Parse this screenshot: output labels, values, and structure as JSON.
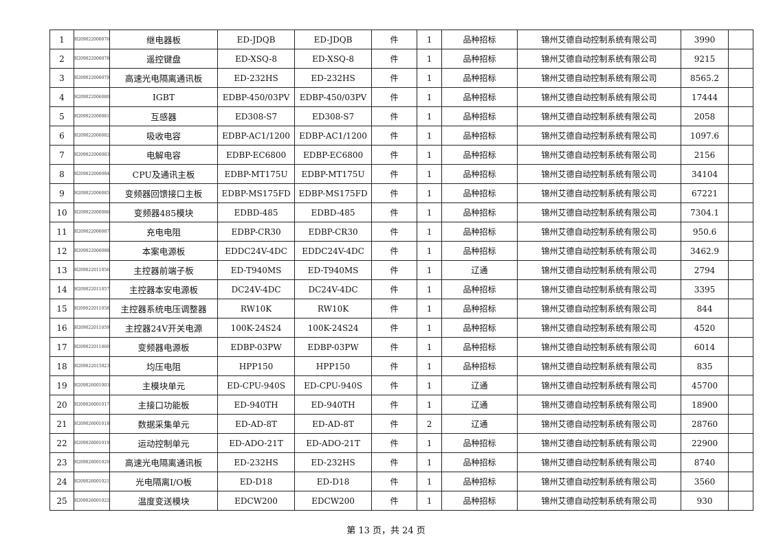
{
  "rows": [
    {
      "no": "1",
      "code": "H209022006076",
      "name": "继电器板",
      "spec": "ED-JDQB",
      "model": "ED-JDQB",
      "unit": "件",
      "qty": "1",
      "type": "品种招标",
      "company": "锦州艾德自动控制系统有限公司",
      "price": "3990",
      "note": ""
    },
    {
      "no": "2",
      "code": "H209022006078",
      "name": "遥控键盘",
      "spec": "ED-XSQ-8",
      "model": "ED-XSQ-8",
      "unit": "件",
      "qty": "1",
      "type": "品种招标",
      "company": "锦州艾德自动控制系统有限公司",
      "price": "9215",
      "note": ""
    },
    {
      "no": "3",
      "code": "H209022006079",
      "name": "高速光电隔离通讯板",
      "spec": "ED-232HS",
      "model": "ED-232HS",
      "unit": "件",
      "qty": "1",
      "type": "品种招标",
      "company": "锦州艾德自动控制系统有限公司",
      "price": "8565.2",
      "note": ""
    },
    {
      "no": "4",
      "code": "H209022006080",
      "name": "IGBT",
      "spec": "EDBP-450/03PV",
      "model": "EDBP-450/03PV",
      "unit": "件",
      "qty": "1",
      "type": "品种招标",
      "company": "锦州艾德自动控制系统有限公司",
      "price": "17444",
      "note": ""
    },
    {
      "no": "5",
      "code": "H209022006081",
      "name": "互感器",
      "spec": "ED308-S7",
      "model": "ED308-S7",
      "unit": "件",
      "qty": "1",
      "type": "品种招标",
      "company": "锦州艾德自动控制系统有限公司",
      "price": "2058",
      "note": ""
    },
    {
      "no": "6",
      "code": "H209022006082",
      "name": "吸收电容",
      "spec": "EDBP-AC1/1200",
      "model": "EDBP-AC1/1200",
      "unit": "件",
      "qty": "1",
      "type": "品种招标",
      "company": "锦州艾德自动控制系统有限公司",
      "price": "1097.6",
      "note": ""
    },
    {
      "no": "7",
      "code": "H209022006083",
      "name": "电解电容",
      "spec": "EDBP-EC6800",
      "model": "EDBP-EC6800",
      "unit": "件",
      "qty": "1",
      "type": "品种招标",
      "company": "锦州艾德自动控制系统有限公司",
      "price": "2156",
      "note": ""
    },
    {
      "no": "8",
      "code": "H209022006084",
      "name": "CPU及通讯主板",
      "spec": "EDBP-MT175U",
      "model": "EDBP-MT175U",
      "unit": "件",
      "qty": "1",
      "type": "品种招标",
      "company": "锦州艾德自动控制系统有限公司",
      "price": "34104",
      "note": ""
    },
    {
      "no": "9",
      "code": "H209022006085",
      "name": "变频器回馈接口主板",
      "spec": "EDBP-MS175FD",
      "model": "EDBP-MS175FD",
      "unit": "件",
      "qty": "1",
      "type": "品种招标",
      "company": "锦州艾德自动控制系统有限公司",
      "price": "67221",
      "note": ""
    },
    {
      "no": "10",
      "code": "H209022006086",
      "name": "变频器485模块",
      "spec": "EDBD-485",
      "model": "EDBD-485",
      "unit": "件",
      "qty": "1",
      "type": "品种招标",
      "company": "锦州艾德自动控制系统有限公司",
      "price": "7304.1",
      "note": ""
    },
    {
      "no": "11",
      "code": "H209022006087",
      "name": "充电电阻",
      "spec": "EDBP-CR30",
      "model": "EDBP-CR30",
      "unit": "件",
      "qty": "1",
      "type": "品种招标",
      "company": "锦州艾德自动控制系统有限公司",
      "price": "950.6",
      "note": ""
    },
    {
      "no": "12",
      "code": "H209022006088",
      "name": "本案电源板",
      "spec": "EDDC24V-4DC",
      "model": "EDDC24V-4DC",
      "unit": "件",
      "qty": "1",
      "type": "品种招标",
      "company": "锦州艾德自动控制系统有限公司",
      "price": "3462.9",
      "note": ""
    },
    {
      "no": "13",
      "code": "H209022011056",
      "name": "主控器前端子板",
      "spec": "ED-T940MS",
      "model": "ED-T940MS",
      "unit": "件",
      "qty": "1",
      "type": "辽通",
      "company": "锦州艾德自动控制系统有限公司",
      "price": "2794",
      "note": ""
    },
    {
      "no": "14",
      "code": "H209022011057",
      "name": "主控器本安电源板",
      "spec": "DC24V-4DC",
      "model": "DC24V-4DC",
      "unit": "件",
      "qty": "1",
      "type": "品种招标",
      "company": "锦州艾德自动控制系统有限公司",
      "price": "3395",
      "note": ""
    },
    {
      "no": "15",
      "code": "H209022011058",
      "name": "主控器系统电压调整器",
      "spec": "RW10K",
      "model": "RW10K",
      "unit": "件",
      "qty": "1",
      "type": "品种招标",
      "company": "锦州艾德自动控制系统有限公司",
      "price": "844",
      "note": ""
    },
    {
      "no": "16",
      "code": "H209022011059",
      "name": "主控器24V开关电源",
      "spec": "100K-24S24",
      "model": "100K-24S24",
      "unit": "件",
      "qty": "1",
      "type": "品种招标",
      "company": "锦州艾德自动控制系统有限公司",
      "price": "4520",
      "note": ""
    },
    {
      "no": "17",
      "code": "H209022011060",
      "name": "变频器电源板",
      "spec": "EDBP-03PW",
      "model": "EDBP-03PW",
      "unit": "件",
      "qty": "1",
      "type": "品种招标",
      "company": "锦州艾德自动控制系统有限公司",
      "price": "6014",
      "note": ""
    },
    {
      "no": "18",
      "code": "H209022015023",
      "name": "均压电阻",
      "spec": "HPP150",
      "model": "HPP150",
      "unit": "件",
      "qty": "1",
      "type": "品种招标",
      "company": "锦州艾德自动控制系统有限公司",
      "price": "835",
      "note": ""
    },
    {
      "no": "19",
      "code": "H209026001003",
      "name": "主模块单元",
      "spec": "ED-CPU-940S",
      "model": "ED-CPU-940S",
      "unit": "件",
      "qty": "1",
      "type": "辽通",
      "company": "锦州艾德自动控制系统有限公司",
      "price": "45700",
      "note": ""
    },
    {
      "no": "20",
      "code": "H209026001017",
      "name": "主接口功能板",
      "spec": "ED-940TH",
      "model": "ED-940TH",
      "unit": "件",
      "qty": "1",
      "type": "辽通",
      "company": "锦州艾德自动控制系统有限公司",
      "price": "18900",
      "note": ""
    },
    {
      "no": "21",
      "code": "H209026001018",
      "name": "数据采集单元",
      "spec": "ED-AD-8T",
      "model": "ED-AD-8T",
      "unit": "件",
      "qty": "2",
      "type": "辽通",
      "company": "锦州艾德自动控制系统有限公司",
      "price": "28760",
      "note": ""
    },
    {
      "no": "22",
      "code": "H209026001019",
      "name": "运动控制单元",
      "spec": "ED-ADO-21T",
      "model": "ED-ADO-21T",
      "unit": "件",
      "qty": "1",
      "type": "品种招标",
      "company": "锦州艾德自动控制系统有限公司",
      "price": "22900",
      "note": ""
    },
    {
      "no": "23",
      "code": "H209026001020",
      "name": "高速光电隔离通讯板",
      "spec": "ED-232HS",
      "model": "ED-232HS",
      "unit": "件",
      "qty": "1",
      "type": "品种招标",
      "company": "锦州艾德自动控制系统有限公司",
      "price": "8740",
      "note": ""
    },
    {
      "no": "24",
      "code": "H209026001021",
      "name": "光电隔离I/O板",
      "spec": "ED-D18",
      "model": "ED-D18",
      "unit": "件",
      "qty": "1",
      "type": "品种招标",
      "company": "锦州艾德自动控制系统有限公司",
      "price": "3560",
      "note": ""
    },
    {
      "no": "25",
      "code": "H209026001022",
      "name": "温度变送模块",
      "spec": "EDCW200",
      "model": "EDCW200",
      "unit": "件",
      "qty": "1",
      "type": "品种招标",
      "company": "锦州艾德自动控制系统有限公司",
      "price": "930",
      "note": ""
    }
  ],
  "footer": {
    "page_label": "第 13 页，共 24 页"
  }
}
